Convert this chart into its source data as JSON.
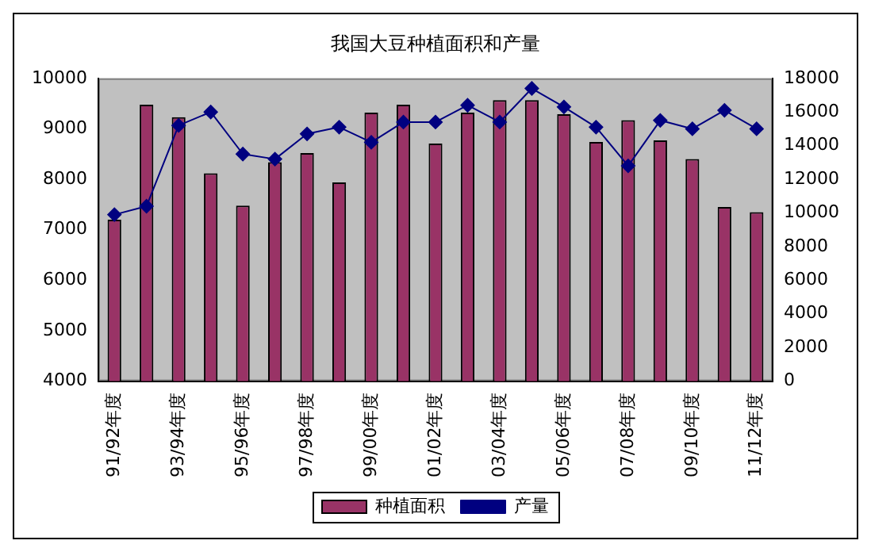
{
  "chart_data": {
    "type": "bar",
    "title": "我国大豆种植面积和产量",
    "categories": [
      "91/92年度",
      null,
      "93/94年度",
      null,
      "95/96年度",
      null,
      "97/98年度",
      null,
      "99/00年度",
      null,
      "01/02年度",
      null,
      "03/04年度",
      null,
      "05/06年度",
      null,
      "07/08年度",
      null,
      "09/10年度",
      null,
      "11/12年度"
    ],
    "series": [
      {
        "name": "种植面积",
        "color": "#993366",
        "values": [
          7200,
          9480,
          9230,
          8120,
          7480,
          8340,
          8520,
          7940,
          9320,
          9480,
          8710,
          9320,
          9570,
          9570,
          9290,
          8740,
          9170,
          8770,
          8400,
          7450,
          7350
        ]
      },
      {
        "name": "产量",
        "type": "line",
        "axis": "y2",
        "color": "#000080",
        "values": [
          9900,
          10400,
          15200,
          16000,
          13500,
          13200,
          14700,
          15100,
          14200,
          15400,
          15400,
          16400,
          15400,
          17400,
          16300,
          15100,
          12800,
          15500,
          15000,
          16100,
          15000
        ]
      }
    ],
    "ylim": [
      4000,
      10000
    ],
    "yticks": [
      4000,
      5000,
      6000,
      7000,
      8000,
      9000,
      10000
    ],
    "y2lim": [
      0,
      18000
    ],
    "y2ticks": [
      0,
      2000,
      4000,
      6000,
      8000,
      10000,
      12000,
      14000,
      16000,
      18000
    ],
    "grid": false,
    "legend": "bottom",
    "marker": "diamond",
    "line_style": "solid"
  }
}
